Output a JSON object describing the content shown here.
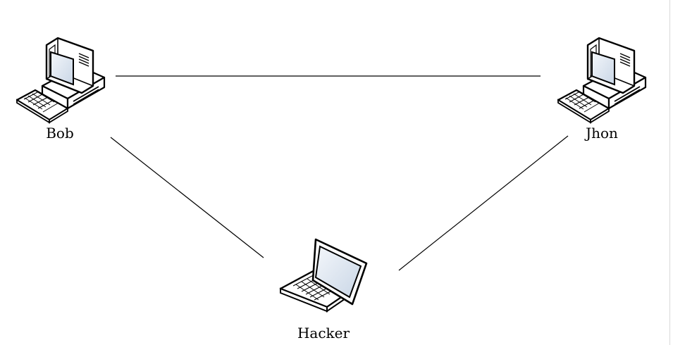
{
  "diagram": {
    "title": "",
    "nodes": [
      {
        "id": "bob",
        "label": "Bob",
        "icon": "desktop-computer-icon"
      },
      {
        "id": "jhon",
        "label": "Jhon",
        "icon": "desktop-computer-icon"
      },
      {
        "id": "hacker",
        "label": "Hacker",
        "icon": "laptop-icon"
      }
    ],
    "edges": [
      {
        "from": "bob",
        "to": "jhon"
      },
      {
        "from": "bob",
        "to": "hacker"
      },
      {
        "from": "jhon",
        "to": "hacker"
      }
    ]
  },
  "colors": {
    "line": "#000000",
    "screen": "#dde6f0",
    "body": "#ffffff",
    "outline": "#000000"
  }
}
